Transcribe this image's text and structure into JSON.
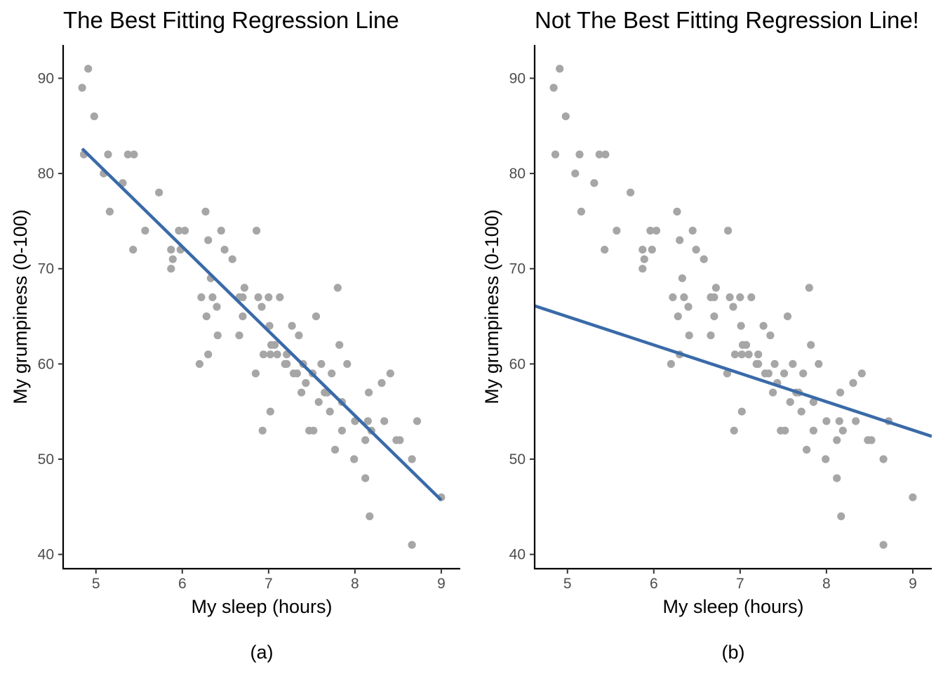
{
  "chart_data": [
    {
      "type": "scatter",
      "title": "The Best Fitting Regression Line",
      "xlabel": "My sleep (hours)",
      "ylabel": "My grumpiness (0-100)",
      "caption": "(a)",
      "xlim": [
        4.62,
        9.22
      ],
      "ylim": [
        38.5,
        93.5
      ],
      "xticks": [
        5,
        6,
        7,
        8,
        9
      ],
      "yticks": [
        40,
        50,
        60,
        70,
        80,
        90
      ],
      "grid": false,
      "point_color": "#a6a6a6",
      "line_color": "#3a6aa8",
      "points": [
        [
          4.84,
          89
        ],
        [
          4.91,
          91
        ],
        [
          4.98,
          86
        ],
        [
          4.86,
          82
        ],
        [
          5.09,
          80
        ],
        [
          5.14,
          82
        ],
        [
          5.16,
          76
        ],
        [
          5.31,
          79
        ],
        [
          5.37,
          82
        ],
        [
          5.44,
          82
        ],
        [
          5.43,
          72
        ],
        [
          5.57,
          74
        ],
        [
          5.73,
          78
        ],
        [
          5.87,
          72
        ],
        [
          5.87,
          70
        ],
        [
          5.89,
          71
        ],
        [
          5.96,
          74
        ],
        [
          5.98,
          72
        ],
        [
          6.03,
          74
        ],
        [
          6.2,
          60
        ],
        [
          6.22,
          67
        ],
        [
          6.27,
          76
        ],
        [
          6.28,
          65
        ],
        [
          6.3,
          73
        ],
        [
          6.3,
          61
        ],
        [
          6.33,
          69
        ],
        [
          6.35,
          67
        ],
        [
          6.4,
          66
        ],
        [
          6.41,
          63
        ],
        [
          6.45,
          74
        ],
        [
          6.49,
          72
        ],
        [
          6.58,
          71
        ],
        [
          6.66,
          67
        ],
        [
          6.66,
          63
        ],
        [
          6.7,
          67
        ],
        [
          6.7,
          65
        ],
        [
          6.72,
          68
        ],
        [
          6.85,
          59
        ],
        [
          6.86,
          74
        ],
        [
          6.88,
          67
        ],
        [
          6.92,
          66
        ],
        [
          6.93,
          53
        ],
        [
          6.94,
          61
        ],
        [
          7.0,
          67
        ],
        [
          7.01,
          64
        ],
        [
          7.02,
          55
        ],
        [
          7.02,
          61
        ],
        [
          7.03,
          62
        ],
        [
          7.07,
          62
        ],
        [
          7.1,
          61
        ],
        [
          7.13,
          67
        ],
        [
          7.19,
          60
        ],
        [
          7.21,
          61
        ],
        [
          7.21,
          60
        ],
        [
          7.27,
          64
        ],
        [
          7.29,
          59
        ],
        [
          7.33,
          59
        ],
        [
          7.35,
          63
        ],
        [
          7.38,
          57
        ],
        [
          7.4,
          60
        ],
        [
          7.43,
          58
        ],
        [
          7.47,
          53
        ],
        [
          7.51,
          59
        ],
        [
          7.52,
          53
        ],
        [
          7.55,
          65
        ],
        [
          7.58,
          56
        ],
        [
          7.61,
          60
        ],
        [
          7.65,
          57
        ],
        [
          7.68,
          57
        ],
        [
          7.71,
          55
        ],
        [
          7.73,
          59
        ],
        [
          7.77,
          51
        ],
        [
          7.8,
          68
        ],
        [
          7.82,
          62
        ],
        [
          7.85,
          53
        ],
        [
          7.85,
          56
        ],
        [
          7.91,
          60
        ],
        [
          7.99,
          50
        ],
        [
          8.0,
          54
        ],
        [
          8.12,
          52
        ],
        [
          8.12,
          48
        ],
        [
          8.15,
          54
        ],
        [
          8.16,
          57
        ],
        [
          8.17,
          44
        ],
        [
          8.19,
          53
        ],
        [
          8.31,
          58
        ],
        [
          8.34,
          54
        ],
        [
          8.41,
          59
        ],
        [
          8.48,
          52
        ],
        [
          8.52,
          52
        ],
        [
          8.66,
          50
        ],
        [
          8.66,
          41
        ],
        [
          8.72,
          54
        ],
        [
          9.0,
          46
        ]
      ],
      "regression_line": {
        "x": [
          4.84,
          9.0
        ],
        "y": [
          82.6,
          45.7
        ]
      }
    },
    {
      "type": "scatter",
      "title": "Not The Best Fitting Regression Line!",
      "xlabel": "My sleep (hours)",
      "ylabel": "My grumpiness (0-100)",
      "caption": "(b)",
      "xlim": [
        4.62,
        9.22
      ],
      "ylim": [
        38.5,
        93.5
      ],
      "xticks": [
        5,
        6,
        7,
        8,
        9
      ],
      "yticks": [
        40,
        50,
        60,
        70,
        80,
        90
      ],
      "grid": false,
      "point_color": "#a6a6a6",
      "line_color": "#3a6aa8",
      "points": [
        [
          4.84,
          89
        ],
        [
          4.91,
          91
        ],
        [
          4.98,
          86
        ],
        [
          4.86,
          82
        ],
        [
          5.09,
          80
        ],
        [
          5.14,
          82
        ],
        [
          5.16,
          76
        ],
        [
          5.31,
          79
        ],
        [
          5.37,
          82
        ],
        [
          5.44,
          82
        ],
        [
          5.43,
          72
        ],
        [
          5.57,
          74
        ],
        [
          5.73,
          78
        ],
        [
          5.87,
          72
        ],
        [
          5.87,
          70
        ],
        [
          5.89,
          71
        ],
        [
          5.96,
          74
        ],
        [
          5.98,
          72
        ],
        [
          6.03,
          74
        ],
        [
          6.2,
          60
        ],
        [
          6.22,
          67
        ],
        [
          6.27,
          76
        ],
        [
          6.28,
          65
        ],
        [
          6.3,
          73
        ],
        [
          6.3,
          61
        ],
        [
          6.33,
          69
        ],
        [
          6.35,
          67
        ],
        [
          6.4,
          66
        ],
        [
          6.41,
          63
        ],
        [
          6.45,
          74
        ],
        [
          6.49,
          72
        ],
        [
          6.58,
          71
        ],
        [
          6.66,
          67
        ],
        [
          6.66,
          63
        ],
        [
          6.7,
          67
        ],
        [
          6.7,
          65
        ],
        [
          6.72,
          68
        ],
        [
          6.85,
          59
        ],
        [
          6.86,
          74
        ],
        [
          6.88,
          67
        ],
        [
          6.92,
          66
        ],
        [
          6.93,
          53
        ],
        [
          6.94,
          61
        ],
        [
          7.0,
          67
        ],
        [
          7.01,
          64
        ],
        [
          7.02,
          55
        ],
        [
          7.02,
          61
        ],
        [
          7.03,
          62
        ],
        [
          7.07,
          62
        ],
        [
          7.1,
          61
        ],
        [
          7.13,
          67
        ],
        [
          7.19,
          60
        ],
        [
          7.21,
          61
        ],
        [
          7.21,
          60
        ],
        [
          7.27,
          64
        ],
        [
          7.29,
          59
        ],
        [
          7.33,
          59
        ],
        [
          7.35,
          63
        ],
        [
          7.38,
          57
        ],
        [
          7.4,
          60
        ],
        [
          7.43,
          58
        ],
        [
          7.47,
          53
        ],
        [
          7.51,
          59
        ],
        [
          7.52,
          53
        ],
        [
          7.55,
          65
        ],
        [
          7.58,
          56
        ],
        [
          7.61,
          60
        ],
        [
          7.65,
          57
        ],
        [
          7.68,
          57
        ],
        [
          7.71,
          55
        ],
        [
          7.73,
          59
        ],
        [
          7.77,
          51
        ],
        [
          7.8,
          68
        ],
        [
          7.82,
          62
        ],
        [
          7.85,
          53
        ],
        [
          7.85,
          56
        ],
        [
          7.91,
          60
        ],
        [
          7.99,
          50
        ],
        [
          8.0,
          54
        ],
        [
          8.12,
          52
        ],
        [
          8.12,
          48
        ],
        [
          8.15,
          54
        ],
        [
          8.16,
          57
        ],
        [
          8.17,
          44
        ],
        [
          8.19,
          53
        ],
        [
          8.31,
          58
        ],
        [
          8.34,
          54
        ],
        [
          8.41,
          59
        ],
        [
          8.48,
          52
        ],
        [
          8.52,
          52
        ],
        [
          8.66,
          50
        ],
        [
          8.66,
          41
        ],
        [
          8.72,
          54
        ],
        [
          9.0,
          46
        ]
      ],
      "regression_line": {
        "x": [
          4.62,
          9.22
        ],
        "y": [
          66.1,
          52.4
        ]
      }
    }
  ]
}
